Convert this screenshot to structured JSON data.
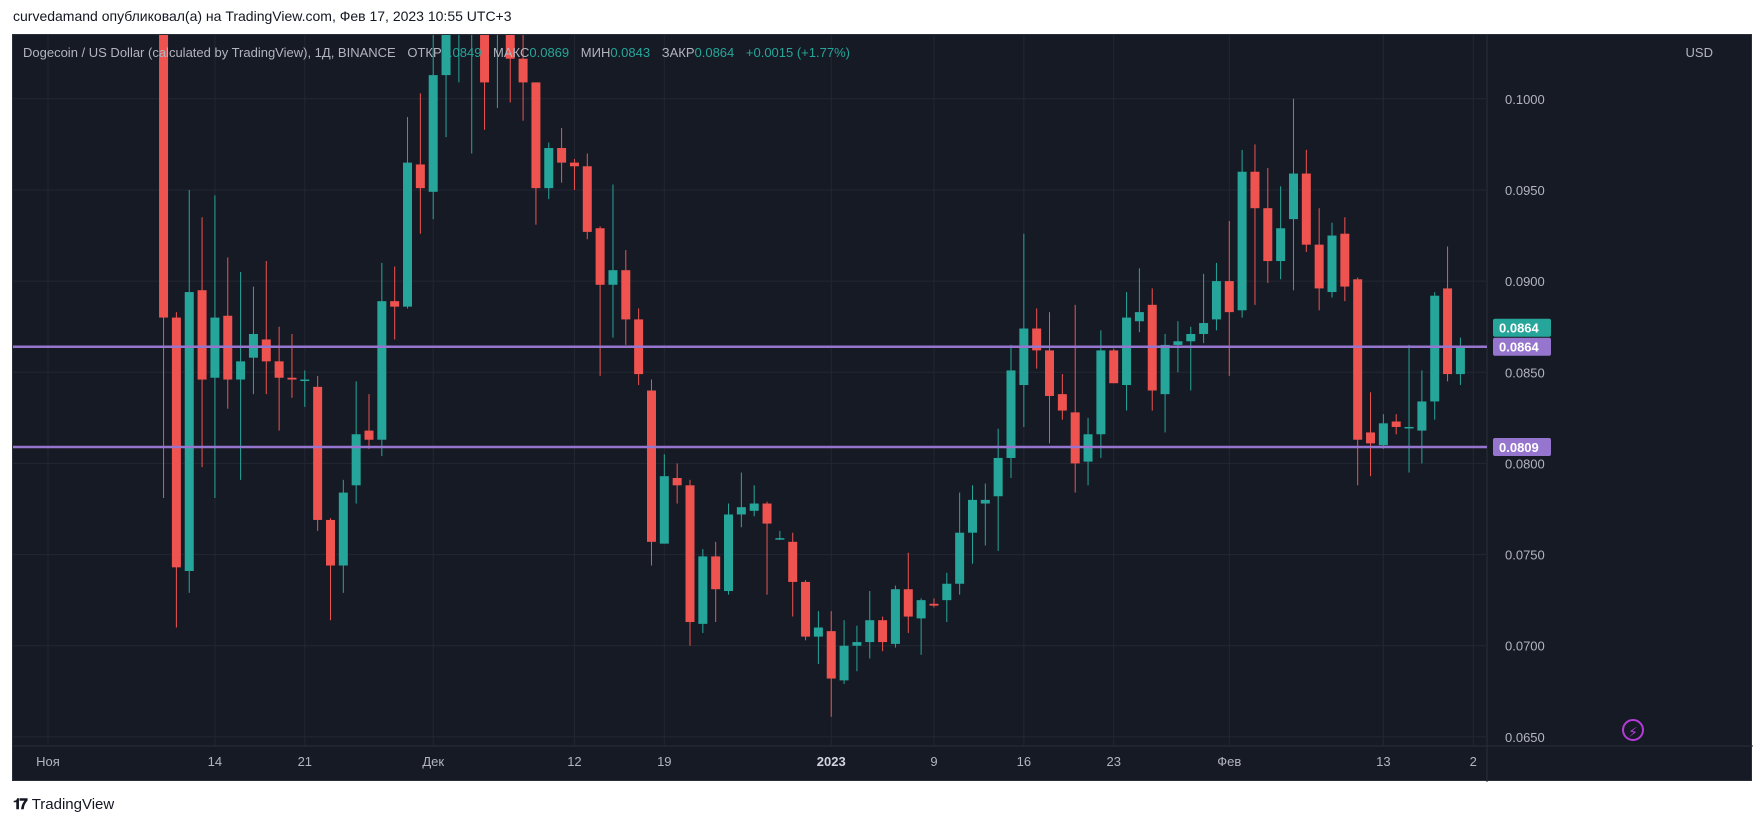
{
  "caption": "curvedamand опубликовал(а) на TradingView.com, Фев 17, 2023 10:55 UTC+3",
  "legend": {
    "symbol": "Dogecoin / US Dollar (calculated by TradingView), 1Д, BINANCE",
    "open_label": "ОТКР",
    "open_value": "0.0849",
    "high_label": "МАКС",
    "high_value": "0.0869",
    "low_label": "МИН",
    "low_value": "0.0843",
    "close_label": "ЗАКР",
    "close_value": "0.0864",
    "change": "+0.0015 (+1.77%)"
  },
  "currency": "USD",
  "footer_logo": "TradingView",
  "colors": {
    "up": "#26a69a",
    "down": "#ef5350",
    "level": "#9575cd",
    "background": "#161a25",
    "grid": "#232733"
  },
  "chart_data": {
    "type": "candlestick",
    "ylim": [
      0.0645,
      0.1035
    ],
    "y_ticks": [
      "0.1000",
      "0.0950",
      "0.0900",
      "0.0850",
      "0.0800",
      "0.0750",
      "0.0700",
      "0.0650"
    ],
    "x_ticks": [
      {
        "label": "Ноя",
        "day": 0
      },
      {
        "label": "14",
        "day": 13
      },
      {
        "label": "21",
        "day": 20
      },
      {
        "label": "Дек",
        "day": 30
      },
      {
        "label": "12",
        "day": 41
      },
      {
        "label": "19",
        "day": 48
      },
      {
        "label": "2023",
        "day": 61,
        "bold": true
      },
      {
        "label": "9",
        "day": 69
      },
      {
        "label": "16",
        "day": 76
      },
      {
        "label": "23",
        "day": 83
      },
      {
        "label": "Фев",
        "day": 92
      },
      {
        "label": "13",
        "day": 104
      },
      {
        "label": "2",
        "day": 111
      }
    ],
    "horizontal_levels": [
      {
        "value": 0.0864,
        "label": "0.0864"
      },
      {
        "value": 0.0809,
        "label": "0.0809"
      }
    ],
    "last_price": {
      "value": 0.0864,
      "label": "0.0864"
    },
    "candles": [
      {
        "d": 9,
        "o": 0.105,
        "h": 0.105,
        "l": 0.0781,
        "c": 0.088
      },
      {
        "d": 10,
        "o": 0.088,
        "h": 0.0883,
        "l": 0.071,
        "c": 0.0743
      },
      {
        "d": 11,
        "o": 0.0741,
        "h": 0.095,
        "l": 0.0729,
        "c": 0.0894
      },
      {
        "d": 12,
        "o": 0.0895,
        "h": 0.0935,
        "l": 0.0798,
        "c": 0.0846
      },
      {
        "d": 13,
        "o": 0.0847,
        "h": 0.0947,
        "l": 0.0781,
        "c": 0.088
      },
      {
        "d": 14,
        "o": 0.0881,
        "h": 0.0913,
        "l": 0.083,
        "c": 0.0846
      },
      {
        "d": 15,
        "o": 0.0846,
        "h": 0.0905,
        "l": 0.0791,
        "c": 0.0856
      },
      {
        "d": 16,
        "o": 0.0858,
        "h": 0.0897,
        "l": 0.0838,
        "c": 0.0871
      },
      {
        "d": 17,
        "o": 0.0868,
        "h": 0.0911,
        "l": 0.0838,
        "c": 0.0856
      },
      {
        "d": 18,
        "o": 0.0856,
        "h": 0.0875,
        "l": 0.0818,
        "c": 0.0847
      },
      {
        "d": 19,
        "o": 0.0847,
        "h": 0.0871,
        "l": 0.0836,
        "c": 0.0846
      },
      {
        "d": 20,
        "o": 0.0846,
        "h": 0.0851,
        "l": 0.0831,
        "c": 0.0846
      },
      {
        "d": 21,
        "o": 0.0842,
        "h": 0.0848,
        "l": 0.0763,
        "c": 0.0769
      },
      {
        "d": 22,
        "o": 0.0769,
        "h": 0.077,
        "l": 0.0714,
        "c": 0.0744
      },
      {
        "d": 23,
        "o": 0.0744,
        "h": 0.0791,
        "l": 0.0729,
        "c": 0.0784
      },
      {
        "d": 24,
        "o": 0.0788,
        "h": 0.0845,
        "l": 0.0778,
        "c": 0.0816
      },
      {
        "d": 25,
        "o": 0.0818,
        "h": 0.0838,
        "l": 0.0808,
        "c": 0.0813
      },
      {
        "d": 26,
        "o": 0.0813,
        "h": 0.091,
        "l": 0.0804,
        "c": 0.0889
      },
      {
        "d": 27,
        "o": 0.0889,
        "h": 0.0908,
        "l": 0.0868,
        "c": 0.0886
      },
      {
        "d": 28,
        "o": 0.0886,
        "h": 0.099,
        "l": 0.0885,
        "c": 0.0965
      },
      {
        "d": 29,
        "o": 0.0964,
        "h": 0.1003,
        "l": 0.0926,
        "c": 0.0951
      },
      {
        "d": 30,
        "o": 0.0949,
        "h": 0.105,
        "l": 0.0934,
        "c": 0.1013
      },
      {
        "d": 31,
        "o": 0.1013,
        "h": 0.105,
        "l": 0.0979,
        "c": 0.105
      },
      {
        "d": 32,
        "o": 0.105,
        "h": 0.105,
        "l": 0.1009,
        "c": 0.105
      },
      {
        "d": 33,
        "o": 0.104,
        "h": 0.105,
        "l": 0.097,
        "c": 0.105
      },
      {
        "d": 34,
        "o": 0.105,
        "h": 0.105,
        "l": 0.0983,
        "c": 0.1009
      },
      {
        "d": 35,
        "o": 0.104,
        "h": 0.105,
        "l": 0.0995,
        "c": 0.105
      },
      {
        "d": 36,
        "o": 0.105,
        "h": 0.105,
        "l": 0.0998,
        "c": 0.1022
      },
      {
        "d": 37,
        "o": 0.1022,
        "h": 0.1045,
        "l": 0.0988,
        "c": 0.1009
      },
      {
        "d": 38,
        "o": 0.1009,
        "h": 0.1009,
        "l": 0.0931,
        "c": 0.0951
      },
      {
        "d": 39,
        "o": 0.0951,
        "h": 0.0976,
        "l": 0.0945,
        "c": 0.0973
      },
      {
        "d": 40,
        "o": 0.0973,
        "h": 0.0984,
        "l": 0.0954,
        "c": 0.0965
      },
      {
        "d": 41,
        "o": 0.0965,
        "h": 0.0967,
        "l": 0.095,
        "c": 0.0963
      },
      {
        "d": 42,
        "o": 0.0963,
        "h": 0.097,
        "l": 0.0923,
        "c": 0.0927
      },
      {
        "d": 43,
        "o": 0.0929,
        "h": 0.093,
        "l": 0.0848,
        "c": 0.0898
      },
      {
        "d": 44,
        "o": 0.0898,
        "h": 0.0953,
        "l": 0.0869,
        "c": 0.0906
      },
      {
        "d": 45,
        "o": 0.0906,
        "h": 0.0917,
        "l": 0.0865,
        "c": 0.0879
      },
      {
        "d": 46,
        "o": 0.0879,
        "h": 0.0885,
        "l": 0.0843,
        "c": 0.0849
      },
      {
        "d": 47,
        "o": 0.084,
        "h": 0.0846,
        "l": 0.0744,
        "c": 0.0757
      },
      {
        "d": 48,
        "o": 0.0756,
        "h": 0.0805,
        "l": 0.0756,
        "c": 0.0793
      },
      {
        "d": 49,
        "o": 0.0792,
        "h": 0.08,
        "l": 0.0778,
        "c": 0.0788
      },
      {
        "d": 50,
        "o": 0.0788,
        "h": 0.0791,
        "l": 0.07,
        "c": 0.0713
      },
      {
        "d": 51,
        "o": 0.0712,
        "h": 0.0753,
        "l": 0.0707,
        "c": 0.0749
      },
      {
        "d": 52,
        "o": 0.0749,
        "h": 0.0757,
        "l": 0.0713,
        "c": 0.0731
      },
      {
        "d": 53,
        "o": 0.073,
        "h": 0.0778,
        "l": 0.0728,
        "c": 0.0772
      },
      {
        "d": 54,
        "o": 0.0772,
        "h": 0.0795,
        "l": 0.0765,
        "c": 0.0776
      },
      {
        "d": 55,
        "o": 0.0774,
        "h": 0.0788,
        "l": 0.0771,
        "c": 0.0778
      },
      {
        "d": 56,
        "o": 0.0778,
        "h": 0.0779,
        "l": 0.0728,
        "c": 0.0767
      },
      {
        "d": 57,
        "o": 0.0759,
        "h": 0.0763,
        "l": 0.0758,
        "c": 0.0759
      },
      {
        "d": 58,
        "o": 0.0757,
        "h": 0.0762,
        "l": 0.0716,
        "c": 0.0735
      },
      {
        "d": 59,
        "o": 0.0735,
        "h": 0.0736,
        "l": 0.0703,
        "c": 0.0705
      },
      {
        "d": 60,
        "o": 0.0705,
        "h": 0.0719,
        "l": 0.069,
        "c": 0.071
      },
      {
        "d": 61,
        "o": 0.0708,
        "h": 0.0719,
        "l": 0.0661,
        "c": 0.0682
      },
      {
        "d": 62,
        "o": 0.0681,
        "h": 0.0714,
        "l": 0.0679,
        "c": 0.07
      },
      {
        "d": 63,
        "o": 0.07,
        "h": 0.0711,
        "l": 0.0686,
        "c": 0.0702
      },
      {
        "d": 64,
        "o": 0.0702,
        "h": 0.073,
        "l": 0.0693,
        "c": 0.0714
      },
      {
        "d": 65,
        "o": 0.0714,
        "h": 0.0716,
        "l": 0.0697,
        "c": 0.0702
      },
      {
        "d": 66,
        "o": 0.0701,
        "h": 0.0733,
        "l": 0.0699,
        "c": 0.0731
      },
      {
        "d": 67,
        "o": 0.0731,
        "h": 0.0751,
        "l": 0.0707,
        "c": 0.0716
      },
      {
        "d": 68,
        "o": 0.0715,
        "h": 0.0726,
        "l": 0.0695,
        "c": 0.0725
      },
      {
        "d": 69,
        "o": 0.0723,
        "h": 0.0726,
        "l": 0.0721,
        "c": 0.0722
      },
      {
        "d": 70,
        "o": 0.0725,
        "h": 0.074,
        "l": 0.0713,
        "c": 0.0734
      },
      {
        "d": 71,
        "o": 0.0734,
        "h": 0.0784,
        "l": 0.0728,
        "c": 0.0762
      },
      {
        "d": 72,
        "o": 0.0762,
        "h": 0.0788,
        "l": 0.0745,
        "c": 0.078
      },
      {
        "d": 73,
        "o": 0.0778,
        "h": 0.0789,
        "l": 0.0755,
        "c": 0.078
      },
      {
        "d": 74,
        "o": 0.0782,
        "h": 0.0819,
        "l": 0.0752,
        "c": 0.0803
      },
      {
        "d": 75,
        "o": 0.0803,
        "h": 0.0865,
        "l": 0.0792,
        "c": 0.0851
      },
      {
        "d": 76,
        "o": 0.0843,
        "h": 0.0926,
        "l": 0.082,
        "c": 0.0874
      },
      {
        "d": 77,
        "o": 0.0874,
        "h": 0.0885,
        "l": 0.0852,
        "c": 0.0862
      },
      {
        "d": 78,
        "o": 0.0862,
        "h": 0.0883,
        "l": 0.0811,
        "c": 0.0837
      },
      {
        "d": 79,
        "o": 0.0838,
        "h": 0.0849,
        "l": 0.0824,
        "c": 0.0829
      },
      {
        "d": 80,
        "o": 0.0828,
        "h": 0.0887,
        "l": 0.0784,
        "c": 0.08
      },
      {
        "d": 81,
        "o": 0.0801,
        "h": 0.0825,
        "l": 0.0788,
        "c": 0.0816
      },
      {
        "d": 82,
        "o": 0.0816,
        "h": 0.0873,
        "l": 0.0803,
        "c": 0.0862
      },
      {
        "d": 83,
        "o": 0.0862,
        "h": 0.0863,
        "l": 0.0844,
        "c": 0.0844
      },
      {
        "d": 84,
        "o": 0.0843,
        "h": 0.0894,
        "l": 0.0829,
        "c": 0.088
      },
      {
        "d": 85,
        "o": 0.0878,
        "h": 0.0907,
        "l": 0.0872,
        "c": 0.0883
      },
      {
        "d": 86,
        "o": 0.0887,
        "h": 0.0896,
        "l": 0.0829,
        "c": 0.084
      },
      {
        "d": 87,
        "o": 0.0838,
        "h": 0.0871,
        "l": 0.0817,
        "c": 0.0865
      },
      {
        "d": 88,
        "o": 0.0865,
        "h": 0.0878,
        "l": 0.085,
        "c": 0.0867
      },
      {
        "d": 89,
        "o": 0.0867,
        "h": 0.0875,
        "l": 0.084,
        "c": 0.0871
      },
      {
        "d": 90,
        "o": 0.0871,
        "h": 0.0904,
        "l": 0.0866,
        "c": 0.0877
      },
      {
        "d": 91,
        "o": 0.0879,
        "h": 0.091,
        "l": 0.0873,
        "c": 0.09
      },
      {
        "d": 92,
        "o": 0.09,
        "h": 0.0933,
        "l": 0.0848,
        "c": 0.0883
      },
      {
        "d": 93,
        "o": 0.0884,
        "h": 0.0972,
        "l": 0.088,
        "c": 0.096
      },
      {
        "d": 94,
        "o": 0.096,
        "h": 0.0975,
        "l": 0.0887,
        "c": 0.094
      },
      {
        "d": 95,
        "o": 0.094,
        "h": 0.0962,
        "l": 0.0899,
        "c": 0.0911
      },
      {
        "d": 96,
        "o": 0.0911,
        "h": 0.0952,
        "l": 0.0901,
        "c": 0.0929
      },
      {
        "d": 97,
        "o": 0.0934,
        "h": 0.1,
        "l": 0.0895,
        "c": 0.0959
      },
      {
        "d": 98,
        "o": 0.0959,
        "h": 0.0972,
        "l": 0.0916,
        "c": 0.092
      },
      {
        "d": 99,
        "o": 0.092,
        "h": 0.094,
        "l": 0.0884,
        "c": 0.0896
      },
      {
        "d": 100,
        "o": 0.0894,
        "h": 0.0932,
        "l": 0.0891,
        "c": 0.0925
      },
      {
        "d": 101,
        "o": 0.0926,
        "h": 0.0935,
        "l": 0.0889,
        "c": 0.0897
      },
      {
        "d": 102,
        "o": 0.0901,
        "h": 0.0902,
        "l": 0.0788,
        "c": 0.0813
      },
      {
        "d": 103,
        "o": 0.0817,
        "h": 0.0839,
        "l": 0.0793,
        "c": 0.0811
      },
      {
        "d": 104,
        "o": 0.081,
        "h": 0.0827,
        "l": 0.0808,
        "c": 0.0822
      },
      {
        "d": 105,
        "o": 0.0823,
        "h": 0.0827,
        "l": 0.0816,
        "c": 0.082
      },
      {
        "d": 106,
        "o": 0.082,
        "h": 0.0865,
        "l": 0.0795,
        "c": 0.082
      },
      {
        "d": 107,
        "o": 0.0818,
        "h": 0.0851,
        "l": 0.08,
        "c": 0.0834
      },
      {
        "d": 108,
        "o": 0.0834,
        "h": 0.0894,
        "l": 0.0824,
        "c": 0.0892
      },
      {
        "d": 109,
        "o": 0.0896,
        "h": 0.0919,
        "l": 0.0845,
        "c": 0.0849
      },
      {
        "d": 110,
        "o": 0.0849,
        "h": 0.0869,
        "l": 0.0843,
        "c": 0.0864
      }
    ]
  }
}
